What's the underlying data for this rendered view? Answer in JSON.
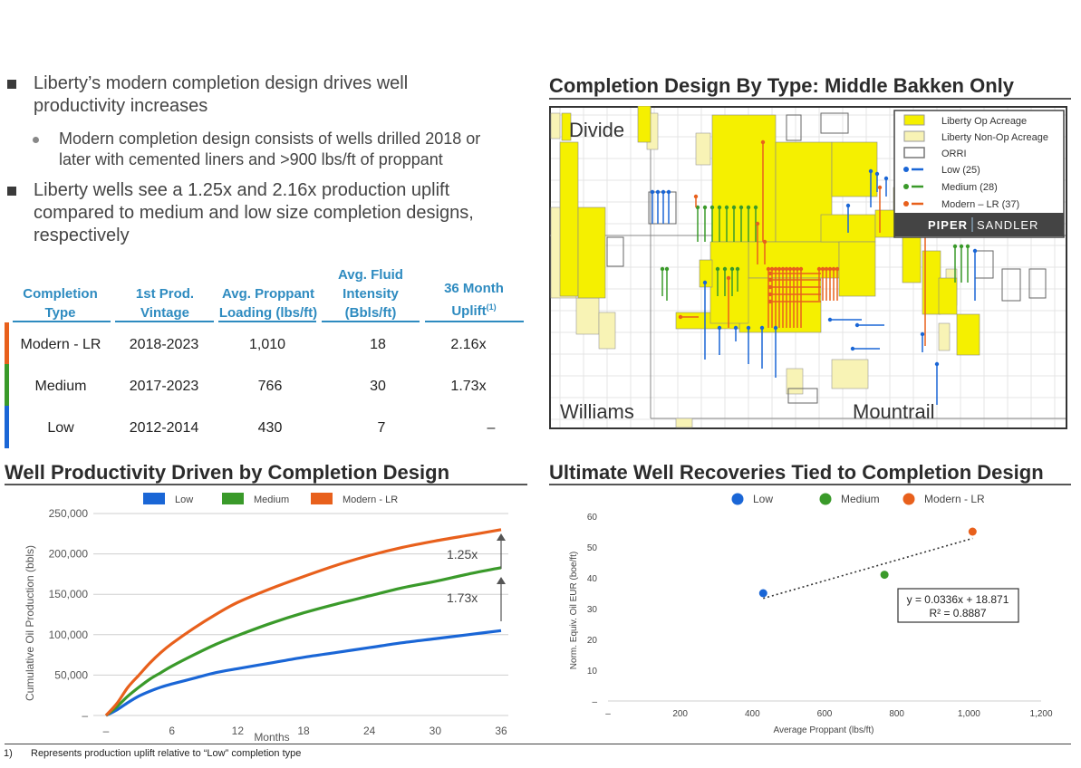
{
  "bullets": [
    {
      "text_line1": "Liberty’s modern completion design drives well",
      "text_line2": "productivity increases"
    },
    {
      "text_line1": "Liberty wells see a 1.25x and 2.16x production uplift",
      "text_line2": "compared to medium and low size completion designs,",
      "text_line3": "respectively"
    }
  ],
  "subbullet": {
    "line1": "Modern completion design consists of wells drilled 2018 or",
    "line2": "later with cemented liners and >900 lbs/ft of proppant"
  },
  "table": {
    "headers": [
      {
        "l1": "Completion",
        "l2": "Type"
      },
      {
        "l1": "1st Prod.",
        "l2": "Vintage"
      },
      {
        "l1": "Avg. Proppant",
        "l2": "Loading (lbs/ft)"
      },
      {
        "l0": "Avg. Fluid",
        "l1": "Intensity",
        "l2": "(Bbls/ft)"
      },
      {
        "l1": "36 Month",
        "l2": "Uplift",
        "sup": "(1)"
      }
    ],
    "rows": [
      {
        "type": "Modern - LR",
        "vintage": "2018-2023",
        "proppant": "1,010",
        "fluid": "18",
        "uplift": "2.16x",
        "color": "#e8601c"
      },
      {
        "type": "Medium",
        "vintage": "2017-2023",
        "proppant": "766",
        "fluid": "30",
        "uplift": "1.73x",
        "color": "#3a9a2a"
      },
      {
        "type": "Low",
        "vintage": "2012-2014",
        "proppant": "430",
        "fluid": "7",
        "uplift": "–",
        "color": "#1a66d6"
      }
    ]
  },
  "map": {
    "title": "Completion Design By Type: Middle Bakken Only",
    "labels": {
      "divide": "Divide",
      "williams": "Williams",
      "mountrail": "Mountrail"
    },
    "legend": [
      {
        "label": "Liberty Op Acreage",
        "icon": "yellow-square",
        "color": "#f5f000"
      },
      {
        "label": "Liberty Non-Op Acreage",
        "icon": "pale-yellow-square",
        "color": "#f8f3b5"
      },
      {
        "label": "ORRI",
        "icon": "outline-square",
        "color": "#777777"
      },
      {
        "label": "Low (25)",
        "icon": "blue-well",
        "color": "#1a66d6"
      },
      {
        "label": "Medium (28)",
        "icon": "green-well",
        "color": "#3a9a2a"
      },
      {
        "label": "Modern – LR (37)",
        "icon": "red-well",
        "color": "#e8601c"
      }
    ],
    "brand": {
      "left": "PIPER",
      "right": "SANDLER"
    }
  },
  "line_chart_title": "Well Productivity Driven by Completion Design",
  "scatter_chart_title": "Ultimate Well Recoveries Tied to Completion Design",
  "chart_data": [
    {
      "type": "line",
      "title": "",
      "xlabel": "Months",
      "ylabel": "Cumulative Oil Production (bbls)",
      "x": [
        0,
        1,
        2,
        3,
        4,
        5,
        6,
        8,
        10,
        12,
        15,
        18,
        21,
        24,
        27,
        30,
        33,
        36
      ],
      "xticks": [
        "–",
        "6",
        "12",
        "18",
        "24",
        "30",
        "36"
      ],
      "yticks": [
        "–",
        "50,000",
        "100,000",
        "150,000",
        "200,000",
        "250,000"
      ],
      "xlim": [
        0,
        36
      ],
      "ylim": [
        0,
        250000
      ],
      "series": [
        {
          "name": "Low",
          "color": "#1a66d6",
          "values": [
            0,
            7000,
            16000,
            24000,
            30000,
            35000,
            39000,
            46000,
            53000,
            58000,
            65000,
            72000,
            78000,
            84000,
            90000,
            95000,
            100000,
            105000
          ]
        },
        {
          "name": "Medium",
          "color": "#3a9a2a",
          "values": [
            0,
            11000,
            24000,
            35000,
            45000,
            53000,
            61000,
            75000,
            88000,
            99000,
            114000,
            127000,
            138000,
            148000,
            158000,
            166000,
            175000,
            183000
          ]
        },
        {
          "name": "Modern - LR",
          "color": "#e8601c",
          "values": [
            0,
            15000,
            35000,
            50000,
            65000,
            78000,
            89000,
            108000,
            125000,
            140000,
            157000,
            172000,
            186000,
            198000,
            208000,
            216000,
            223000,
            230000
          ]
        }
      ],
      "annotations": [
        "1.25x",
        "1.73x"
      ],
      "legend": "top"
    },
    {
      "type": "scatter",
      "title": "",
      "xlabel": "Average Proppant (lbs/ft)",
      "ylabel": "Norm. Equiv. Oil EUR (boe/ft)",
      "xticks": [
        "–",
        "200",
        "400",
        "600",
        "800",
        "1,000",
        "1,200"
      ],
      "yticks": [
        "–",
        "10",
        "20",
        "30",
        "40",
        "50",
        "60"
      ],
      "xlim": [
        0,
        1200
      ],
      "ylim": [
        0,
        60
      ],
      "series": [
        {
          "name": "Low",
          "color": "#1a66d6",
          "x": [
            430
          ],
          "y": [
            35
          ]
        },
        {
          "name": "Medium",
          "color": "#3a9a2a",
          "x": [
            766
          ],
          "y": [
            41
          ]
        },
        {
          "name": "Modern - LR",
          "color": "#e8601c",
          "x": [
            1010
          ],
          "y": [
            55
          ]
        }
      ],
      "trendline": {
        "slope": 0.0336,
        "intercept": 18.871,
        "x_range": [
          430,
          1010
        ]
      },
      "equation_line1": "y = 0.0336x + 18.871",
      "equation_line2": "R² = 0.8887",
      "legend": "top"
    }
  ],
  "footnote": {
    "num": "1)",
    "text": "Represents production uplift relative to “Low” completion type"
  }
}
